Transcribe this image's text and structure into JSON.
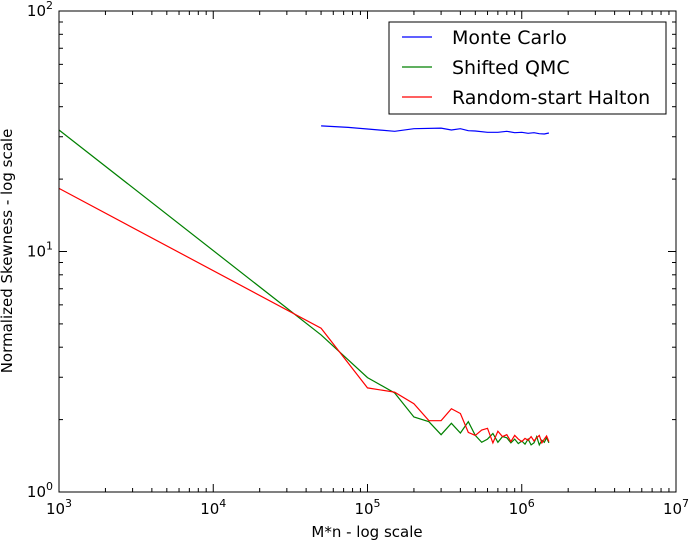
{
  "chart_data": {
    "type": "line",
    "xscale": "log",
    "yscale": "log",
    "xlim": [
      1000,
      10000000
    ],
    "ylim": [
      1,
      100
    ],
    "xlabel": "M*n - log scale",
    "ylabel": "Normalized Skewness - log scale",
    "grid": false,
    "legend_position": "top-right",
    "x_ticks": [
      {
        "value": 1000,
        "base": "10",
        "exp": "3"
      },
      {
        "value": 10000,
        "base": "10",
        "exp": "4"
      },
      {
        "value": 100000,
        "base": "10",
        "exp": "5"
      },
      {
        "value": 1000000,
        "base": "10",
        "exp": "6"
      },
      {
        "value": 10000000,
        "base": "10",
        "exp": "7"
      }
    ],
    "y_ticks": [
      {
        "value": 1,
        "base": "10",
        "exp": "0"
      },
      {
        "value": 10,
        "base": "10",
        "exp": "1"
      },
      {
        "value": 100,
        "base": "10",
        "exp": "2"
      }
    ],
    "series": [
      {
        "name": "Monte Carlo",
        "color": "#0000ff",
        "x": [
          50000,
          75000,
          100000,
          150000,
          200000,
          300000,
          350000,
          400000,
          450000,
          500000,
          600000,
          700000,
          800000,
          900000,
          1000000,
          1100000,
          1200000,
          1300000,
          1400000,
          1500000
        ],
        "y": [
          33.3,
          32.8,
          32.3,
          31.6,
          32.4,
          32.6,
          32.0,
          32.4,
          31.8,
          31.7,
          31.3,
          31.3,
          31.6,
          31.2,
          31.3,
          31.0,
          31.2,
          30.9,
          30.8,
          31.1
        ]
      },
      {
        "name": "Shifted QMC",
        "color": "#008000",
        "x": [
          1000,
          50000,
          100000,
          150000,
          200000,
          250000,
          300000,
          350000,
          400000,
          450000,
          500000,
          550000,
          600000,
          650000,
          700000,
          750000,
          800000,
          850000,
          900000,
          950000,
          1000000,
          1050000,
          1100000,
          1150000,
          1200000,
          1250000,
          1300000,
          1350000,
          1400000,
          1450000,
          1500000
        ],
        "y": [
          32.0,
          4.5,
          2.99,
          2.58,
          2.05,
          1.96,
          1.73,
          1.93,
          1.76,
          1.96,
          1.72,
          1.61,
          1.66,
          1.75,
          1.61,
          1.7,
          1.68,
          1.6,
          1.66,
          1.59,
          1.63,
          1.58,
          1.66,
          1.57,
          1.6,
          1.7,
          1.57,
          1.64,
          1.61,
          1.68,
          1.6
        ]
      },
      {
        "name": "Random-start Halton",
        "color": "#ff0000",
        "x": [
          1000,
          50000,
          100000,
          150000,
          200000,
          250000,
          300000,
          350000,
          400000,
          450000,
          500000,
          550000,
          600000,
          650000,
          700000,
          750000,
          800000,
          850000,
          900000,
          950000,
          1000000,
          1050000,
          1100000,
          1150000,
          1200000,
          1250000,
          1300000,
          1350000,
          1400000,
          1450000,
          1500000
        ],
        "y": [
          18.3,
          4.8,
          2.71,
          2.6,
          2.33,
          1.98,
          1.98,
          2.22,
          2.12,
          1.77,
          1.72,
          1.81,
          1.84,
          1.6,
          1.79,
          1.7,
          1.73,
          1.62,
          1.72,
          1.66,
          1.62,
          1.67,
          1.64,
          1.7,
          1.63,
          1.68,
          1.72,
          1.6,
          1.66,
          1.71,
          1.62
        ]
      }
    ]
  }
}
